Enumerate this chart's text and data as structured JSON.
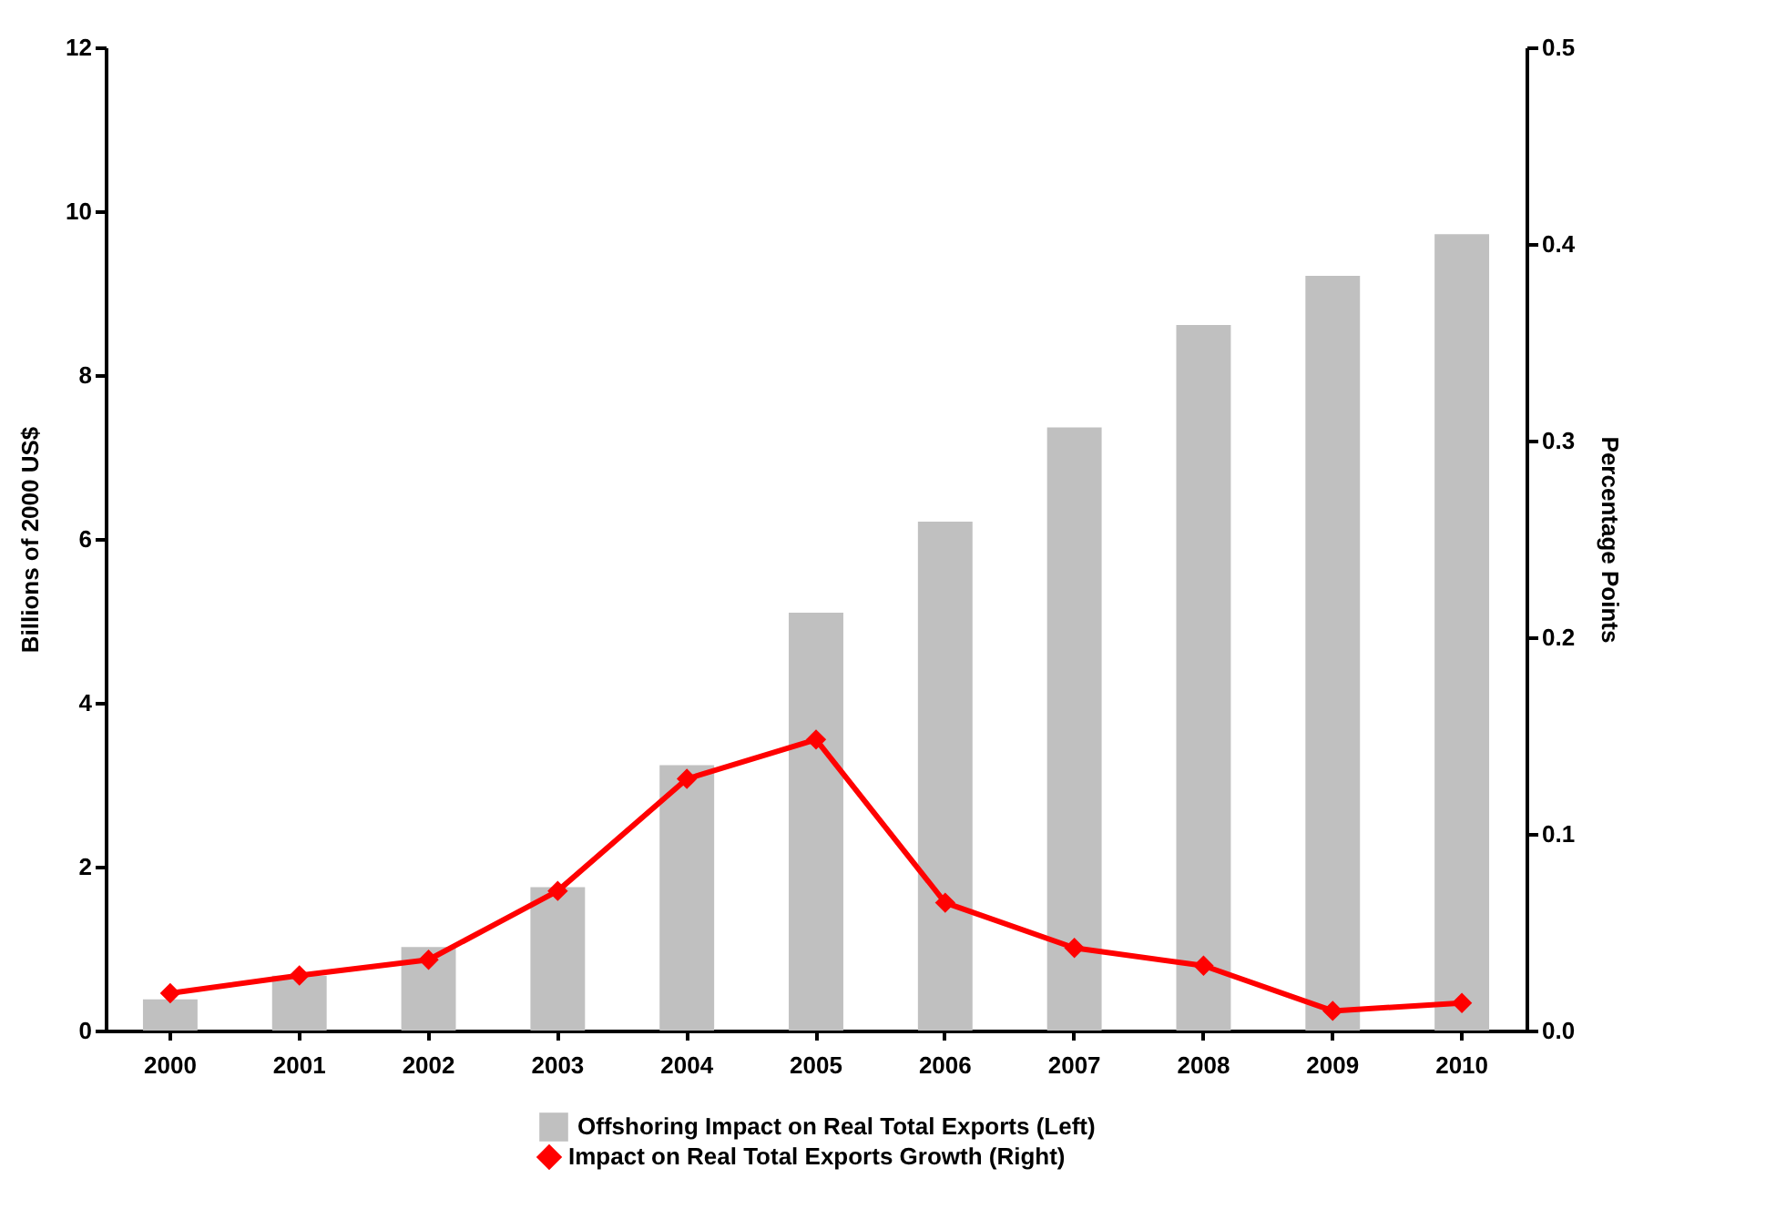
{
  "chart_data": {
    "type": "bar",
    "categories": [
      "2000",
      "2001",
      "2002",
      "2003",
      "2004",
      "2005",
      "2006",
      "2007",
      "2008",
      "2009",
      "2010"
    ],
    "ylabel": "Billions of 2000 US$",
    "y2label": "Percentage Points",
    "ylim": [
      0,
      12
    ],
    "yticks": [
      0,
      2,
      4,
      6,
      8,
      10,
      12
    ],
    "y2lim": [
      0,
      0.5
    ],
    "y2ticks": [
      {
        "value": 0,
        "label": "0.0"
      },
      {
        "value": 0.1,
        "label": "0.1"
      },
      {
        "value": 0.2,
        "label": "0.2"
      },
      {
        "value": 0.3,
        "label": "0.3"
      },
      {
        "value": 0.4,
        "label": "0.4"
      },
      {
        "value": 0.5,
        "label": "0.5"
      }
    ],
    "grid": false,
    "legend": "bottom",
    "series": [
      {
        "name": "Offshoring Impact on Real Total Exports (Left)",
        "color": "#c0c0c0",
        "values": [
          0.38,
          0.67,
          1.02,
          1.75,
          3.24,
          5.1,
          6.21,
          7.36,
          8.61,
          9.21,
          9.72
        ]
      },
      {
        "name": "Impact on Real Total Exports Growth (Right)",
        "type": "line",
        "axis": "y2",
        "color": "#ff0000",
        "marker": "diamond",
        "values": [
          0.019,
          0.028,
          0.036,
          0.071,
          0.128,
          0.148,
          0.065,
          0.042,
          0.033,
          0.01,
          0.014
        ]
      }
    ]
  }
}
